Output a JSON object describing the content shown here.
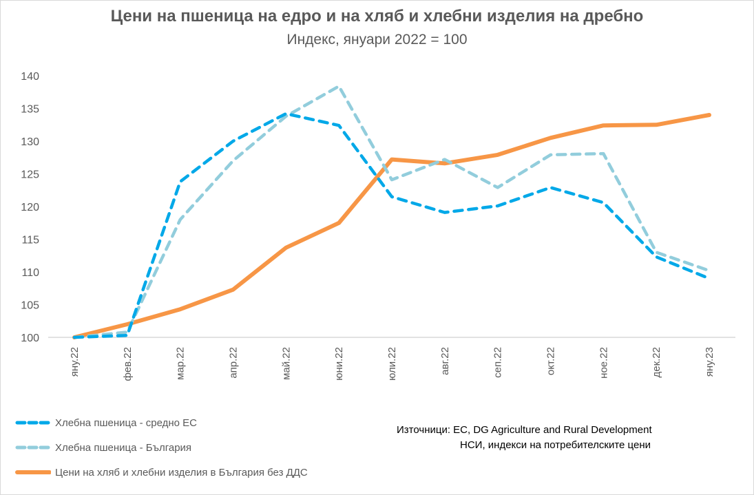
{
  "chart_data": {
    "type": "line",
    "title": "Цени на пшеница на едро и на хляб и хлебни изделия на дребно",
    "subtitle": "Индекс, януари 2022 = 100",
    "xlabel": "",
    "ylabel": "",
    "ylim": [
      100,
      140
    ],
    "yticks": [
      "100",
      "105",
      "110",
      "115",
      "120",
      "125",
      "130",
      "135",
      "140"
    ],
    "categories": [
      "яну.22",
      "фев.22",
      "мар.22",
      "апр.22",
      "май.22",
      "юни.22",
      "юли.22",
      "авг.22",
      "сеп.22",
      "окт.22",
      "ное.22",
      "дек.22",
      "яну.23"
    ],
    "grid": false,
    "legend_position": "bottom-left",
    "series": [
      {
        "name": "Хлебна пшеница - средно ЕС",
        "color": "#00a8e8",
        "style": "dashed",
        "values": [
          100,
          100.3,
          123.8,
          130,
          134.2,
          132.4,
          121.5,
          119.1,
          120.1,
          122.9,
          120.6,
          112.3,
          109
        ]
      },
      {
        "name": "Хлебна пшеница - България",
        "color": "#92cddc",
        "style": "dashed",
        "values": [
          100,
          100.8,
          118,
          127,
          133.8,
          138.4,
          124.1,
          127.2,
          122.9,
          127.9,
          128.1,
          113,
          110.2
        ]
      },
      {
        "name": "Цени на хляб и хлебни изделия в България без ДДС",
        "color": "#f79646",
        "style": "solid",
        "values": [
          100,
          102,
          104.3,
          107.3,
          113.7,
          117.5,
          127.2,
          126.6,
          127.9,
          130.5,
          132.4,
          132.5,
          134
        ]
      }
    ]
  },
  "source": {
    "line1": "Източници: EC, DG Agriculture and Rural Development",
    "line2": "НСИ, индекси на потребителските цени"
  }
}
